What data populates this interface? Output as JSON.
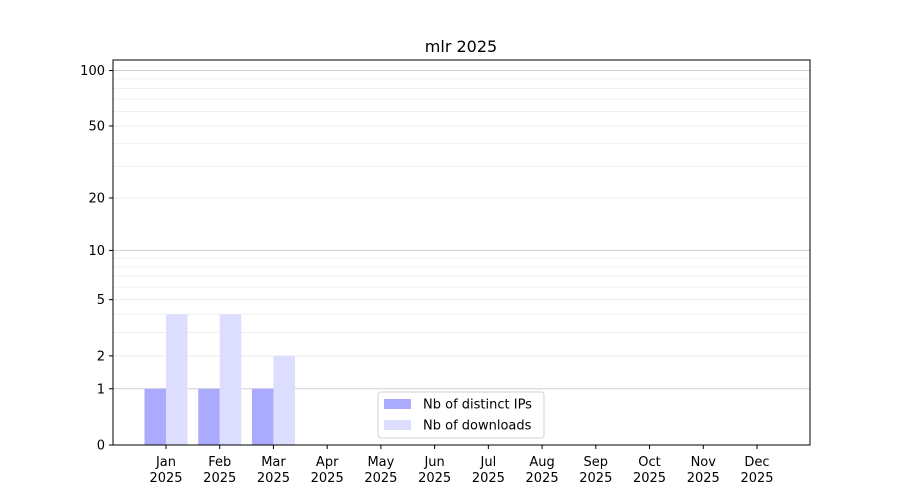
{
  "chart_data": {
    "type": "bar",
    "title": "mlr 2025",
    "xlabel": "",
    "ylabel": "",
    "y_scale": "log(1+y)",
    "ylim": [
      0,
      114
    ],
    "y_ticks": [
      0,
      1,
      2,
      5,
      10,
      20,
      50,
      100
    ],
    "y_minor_grid": [
      3,
      4,
      6,
      7,
      8,
      9,
      30,
      40,
      60,
      70,
      80,
      90
    ],
    "grid": true,
    "legend_position": "bottom-center",
    "categories": [
      [
        "Jan",
        "2025"
      ],
      [
        "Feb",
        "2025"
      ],
      [
        "Mar",
        "2025"
      ],
      [
        "Apr",
        "2025"
      ],
      [
        "May",
        "2025"
      ],
      [
        "Jun",
        "2025"
      ],
      [
        "Jul",
        "2025"
      ],
      [
        "Aug",
        "2025"
      ],
      [
        "Sep",
        "2025"
      ],
      [
        "Oct",
        "2025"
      ],
      [
        "Nov",
        "2025"
      ],
      [
        "Dec",
        "2025"
      ]
    ],
    "series": [
      {
        "name": "Nb of distinct IPs",
        "color": "#aaaaff",
        "values": [
          1,
          1,
          1,
          0,
          0,
          0,
          0,
          0,
          0,
          0,
          0,
          0
        ]
      },
      {
        "name": "Nb of downloads",
        "color": "#ddddff",
        "values": [
          4,
          4,
          2,
          0,
          0,
          0,
          0,
          0,
          0,
          0,
          0,
          0
        ]
      }
    ]
  }
}
